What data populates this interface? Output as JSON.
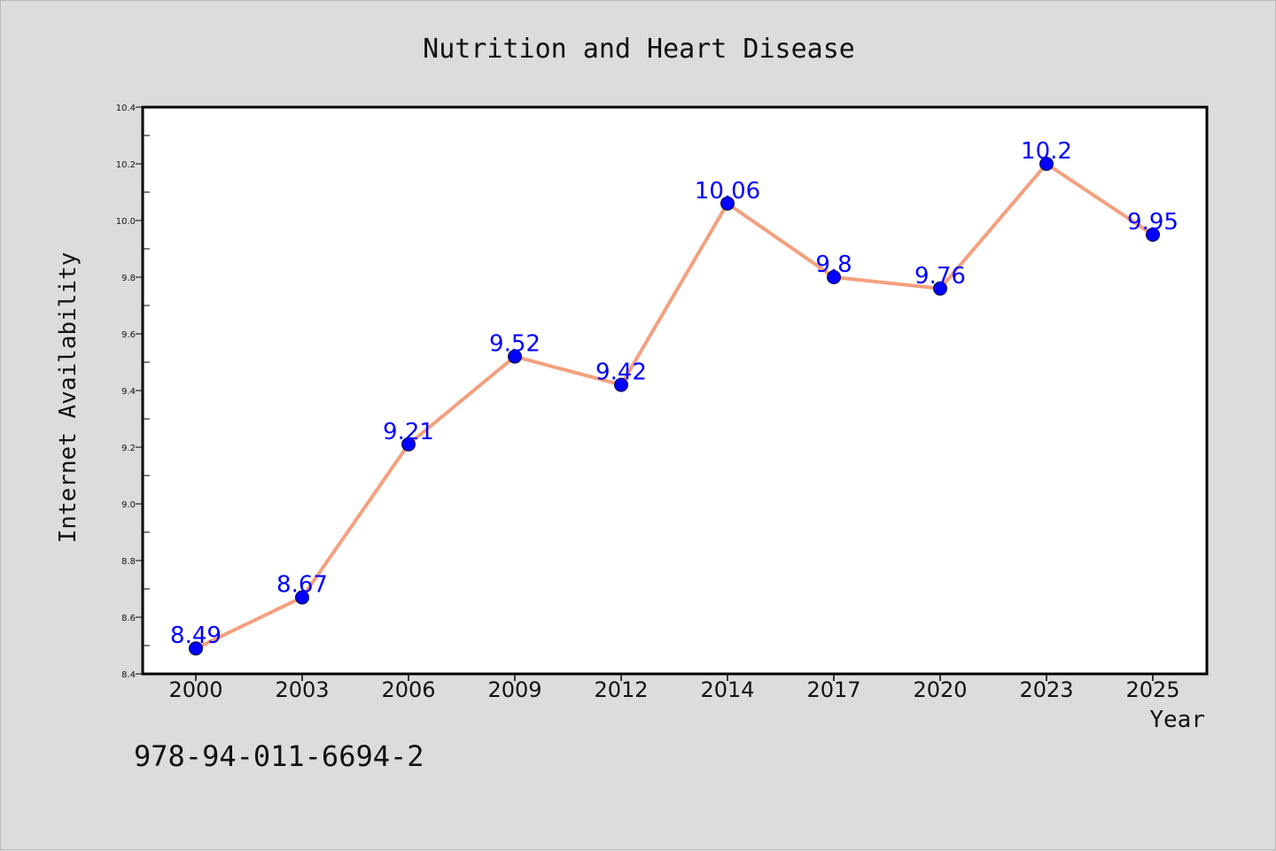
{
  "chart_data": {
    "type": "line",
    "title": "Nutrition and Heart Disease",
    "xlabel": "Year",
    "ylabel": "Internet Availability",
    "categories": [
      "2000",
      "2003",
      "2006",
      "2009",
      "2012",
      "2014",
      "2017",
      "2020",
      "2023",
      "2025"
    ],
    "series": [
      {
        "values": [
          8.49,
          8.67,
          9.21,
          9.52,
          9.42,
          10.06,
          9.8,
          9.76,
          10.2,
          9.95
        ]
      }
    ],
    "data_labels": [
      "8.49",
      "8.67",
      "9.21",
      "9.52",
      "9.42",
      "10.06",
      "9.8",
      "9.76",
      "10.2",
      "9.95"
    ],
    "ylim": [
      8.4,
      10.4
    ],
    "yticks": [
      "8.4",
      "8.6",
      "8.8",
      "9.0",
      "9.2",
      "9.4",
      "9.6",
      "9.8",
      "10.0",
      "10.2",
      "10.4"
    ],
    "grid": false,
    "legend": "none",
    "colors": {
      "line": "#f4a07e",
      "marker": "#0000ff",
      "marker_edge": "#0a0a40",
      "data_label": "#0000ff",
      "background": "#dcdcdc",
      "plot_background": "#ffffff"
    }
  },
  "footer": {
    "isbn": "978-94-011-6694-2"
  }
}
